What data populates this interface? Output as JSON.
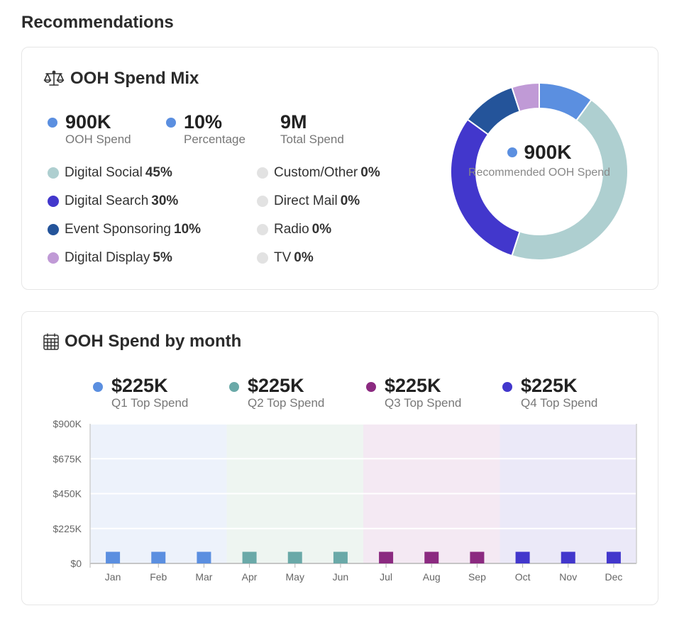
{
  "page": {
    "title": "Recommendations"
  },
  "mix": {
    "title": "OOH Spend Mix",
    "stats": [
      {
        "value": "900K",
        "label": "OOH Spend",
        "color": "#5b8fe0"
      },
      {
        "value": "10%",
        "label": "Percentage",
        "color": "#5b8fe0"
      },
      {
        "value": "9M",
        "label": "Total Spend"
      }
    ],
    "legend_left": [
      {
        "name": "Digital Social",
        "pct": "45%",
        "color": "#aecfd0"
      },
      {
        "name": "Digital Search",
        "pct": "30%",
        "color": "#4237cc"
      },
      {
        "name": "Event Sponsoring",
        "pct": "10%",
        "color": "#24549a"
      },
      {
        "name": "Digital Display",
        "pct": "5%",
        "color": "#c09ad6"
      }
    ],
    "legend_right": [
      {
        "name": "Custom/Other",
        "pct": "0%",
        "color": "#e2e2e2"
      },
      {
        "name": "Direct Mail",
        "pct": "0%",
        "color": "#e2e2e2"
      },
      {
        "name": "Radio",
        "pct": "0%",
        "color": "#e2e2e2"
      },
      {
        "name": "TV",
        "pct": "0%",
        "color": "#e2e2e2"
      }
    ],
    "donut_center": {
      "value": "900K",
      "label": "Recommended OOH Spend",
      "color": "#5b8fe0"
    }
  },
  "month": {
    "title": "OOH Spend by month",
    "quarters": [
      {
        "value": "$225K",
        "label": "Q1 Top Spend",
        "color": "#5b8fe0"
      },
      {
        "value": "$225K",
        "label": "Q2 Top Spend",
        "color": "#6aa9a8"
      },
      {
        "value": "$225K",
        "label": "Q3 Top Spend",
        "color": "#8b2a80"
      },
      {
        "value": "$225K",
        "label": "Q4 Top Spend",
        "color": "#4237cc"
      }
    ]
  },
  "chart_data": [
    {
      "type": "pie",
      "title": "OOH Spend Mix",
      "categories": [
        "OOH Spend",
        "Digital Social",
        "Digital Search",
        "Event Sponsoring",
        "Digital Display",
        "Custom/Other",
        "Direct Mail",
        "Radio",
        "TV"
      ],
      "values": [
        10,
        45,
        30,
        10,
        5,
        0,
        0,
        0,
        0
      ],
      "colors": [
        "#5b8fe0",
        "#aecfd0",
        "#4237cc",
        "#24549a",
        "#c09ad6",
        "#e2e2e2",
        "#e2e2e2",
        "#e2e2e2",
        "#e2e2e2"
      ]
    },
    {
      "type": "bar",
      "title": "OOH Spend by month",
      "categories": [
        "Jan",
        "Feb",
        "Mar",
        "Apr",
        "May",
        "Jun",
        "Jul",
        "Aug",
        "Sep",
        "Oct",
        "Nov",
        "Dec"
      ],
      "values": [
        75000,
        75000,
        75000,
        75000,
        75000,
        75000,
        75000,
        75000,
        75000,
        75000,
        75000,
        75000
      ],
      "bar_colors": [
        "#5b8fe0",
        "#5b8fe0",
        "#5b8fe0",
        "#6aa9a8",
        "#6aa9a8",
        "#6aa9a8",
        "#8b2a80",
        "#8b2a80",
        "#8b2a80",
        "#4237cc",
        "#4237cc",
        "#4237cc"
      ],
      "quarter_bands": [
        "#edf2fb",
        "#eef5f1",
        "#f4e9f3",
        "#ebe9f8"
      ],
      "y_ticks": [
        0,
        225000,
        450000,
        675000,
        900000
      ],
      "y_tick_labels": [
        "$0",
        "$225K",
        "$450K",
        "$675K",
        "$900K"
      ],
      "ylim": [
        0,
        900000
      ],
      "grid": true
    }
  ]
}
